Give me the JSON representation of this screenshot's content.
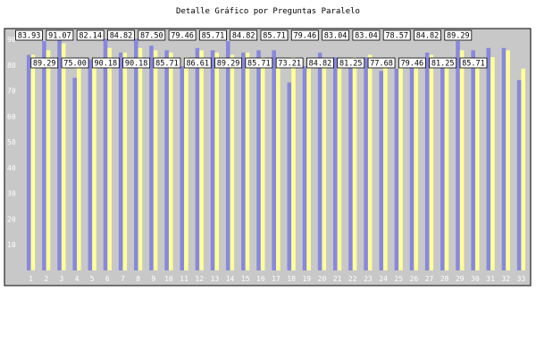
{
  "chart_data": {
    "type": "bar",
    "title": "Detalle Gráfico por Preguntas Paralelo",
    "categories": [
      "1",
      "2",
      "3",
      "4",
      "5",
      "6",
      "7",
      "8",
      "9",
      "10",
      "11",
      "12",
      "13",
      "14",
      "15",
      "16",
      "17",
      "18",
      "19",
      "20",
      "21",
      "22",
      "23",
      "24",
      "25",
      "26",
      "27",
      "28",
      "29",
      "30",
      "31",
      "32",
      "33"
    ],
    "ylim": [
      0,
      90
    ],
    "yticks": [
      0,
      10,
      20,
      30,
      40,
      50,
      60,
      70,
      80,
      90
    ],
    "grid": false,
    "series": [
      {
        "color": "#8888dd",
        "values": [
          83.93,
          89.29,
          91.07,
          75.0,
          82.14,
          90.18,
          84.82,
          90.18,
          87.5,
          85.71,
          79.46,
          86.61,
          85.71,
          89.29,
          84.82,
          85.71,
          85.71,
          73.21,
          79.46,
          84.82,
          83.04,
          81.25,
          83.04,
          77.68,
          78.57,
          79.46,
          84.82,
          81.25,
          89.29,
          85.71,
          86.61,
          86.61,
          74.11
        ]
      },
      {
        "color": "#ffff99",
        "values": [
          83.93,
          85.71,
          88.39,
          80.36,
          82.14,
          86.61,
          84.82,
          86.61,
          85.71,
          84.82,
          83.04,
          85.71,
          84.82,
          83.93,
          84.82,
          83.04,
          81.25,
          83.04,
          82.14,
          81.25,
          80.36,
          83.04,
          83.93,
          81.25,
          79.46,
          81.25,
          83.93,
          82.14,
          85.71,
          81.25,
          83.04,
          85.71,
          78.57
        ]
      }
    ],
    "labels": [
      {
        "text": "83.93",
        "index": 0
      },
      {
        "text": "89.29",
        "index": 1
      },
      {
        "text": "91.07",
        "index": 2
      },
      {
        "text": "75.00",
        "index": 3
      },
      {
        "text": "82.14",
        "index": 4
      },
      {
        "text": "90.18",
        "index": 5
      },
      {
        "text": "84.82",
        "index": 6
      },
      {
        "text": "90.18",
        "index": 7
      },
      {
        "text": "87.50",
        "index": 8
      },
      {
        "text": "85.71",
        "index": 9
      },
      {
        "text": "79.46",
        "index": 10
      },
      {
        "text": "86.61",
        "index": 11
      },
      {
        "text": "85.71",
        "index": 12
      },
      {
        "text": "89.29",
        "index": 13
      },
      {
        "text": "84.82",
        "index": 14
      },
      {
        "text": "85.71",
        "index": 15
      },
      {
        "text": "85.71",
        "index": 16
      },
      {
        "text": "73.21",
        "index": 17
      },
      {
        "text": "79.46",
        "index": 18
      },
      {
        "text": "84.82",
        "index": 19
      },
      {
        "text": "83.04",
        "index": 20
      },
      {
        "text": "81.25",
        "index": 21
      },
      {
        "text": "83.04",
        "index": 22
      },
      {
        "text": "77.68",
        "index": 23
      },
      {
        "text": "78.57",
        "index": 24
      },
      {
        "text": "79.46",
        "index": 25
      },
      {
        "text": "84.82",
        "index": 26
      },
      {
        "text": "81.25",
        "index": 27
      },
      {
        "text": "89.29",
        "index": 28
      },
      {
        "text": "85.71",
        "index": 29
      }
    ]
  }
}
